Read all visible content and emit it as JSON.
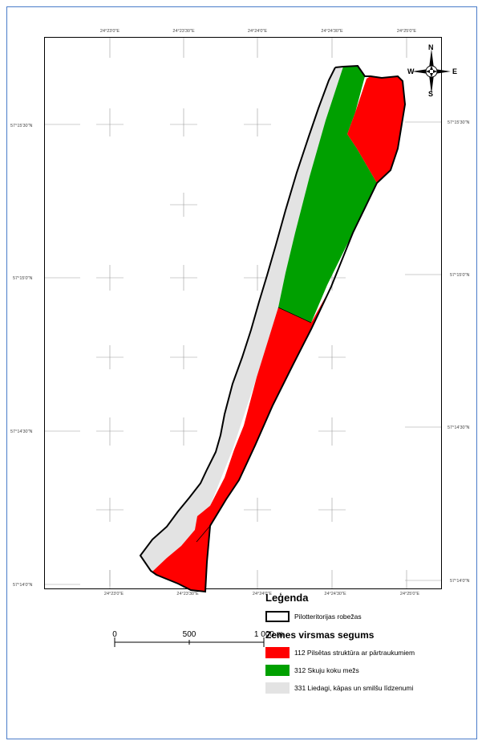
{
  "coordinates": {
    "top": [
      "24°23'0\"E",
      "24°23'30\"E",
      "24°24'0\"E",
      "24°24'30\"E",
      "24°25'0\"E"
    ],
    "bottom": [
      "24°23'0\"E",
      "24°23'30\"E",
      "24°24'0\"E",
      "24°24'30\"E",
      "24°25'0\"E"
    ],
    "left": [
      "57°15'30\"N",
      "57°15'0\"N",
      "57°14'30\"N",
      "57°14'0\"N"
    ],
    "right": [
      "57°15'30\"N",
      "57°15'0\"N",
      "57°14'30\"N",
      "57°14'0\"N"
    ]
  },
  "compass": {
    "n": "N",
    "s": "S",
    "e": "E",
    "w": "W"
  },
  "legend": {
    "title": "Leģenda",
    "boundary_label": "Pilotteritorijas robežas",
    "subtitle": "Zemes virsmas segums",
    "items": [
      {
        "label": "112 Pilsētas struktūra ar pārtraukumiem",
        "color": "#ff0000"
      },
      {
        "label": "312 Skuju koku mežs",
        "color": "#00a000"
      },
      {
        "label": "331 Liedagi, kāpas un smilšu līdzenumi",
        "color": "#e3e3e3"
      }
    ]
  },
  "scale_bar": {
    "labels": [
      "0",
      "500",
      "1 000 m"
    ]
  },
  "colors": {
    "urban": "#ff0000",
    "forest": "#00a000",
    "beach": "#e3e3e3",
    "frame": "#4a7cc9"
  }
}
